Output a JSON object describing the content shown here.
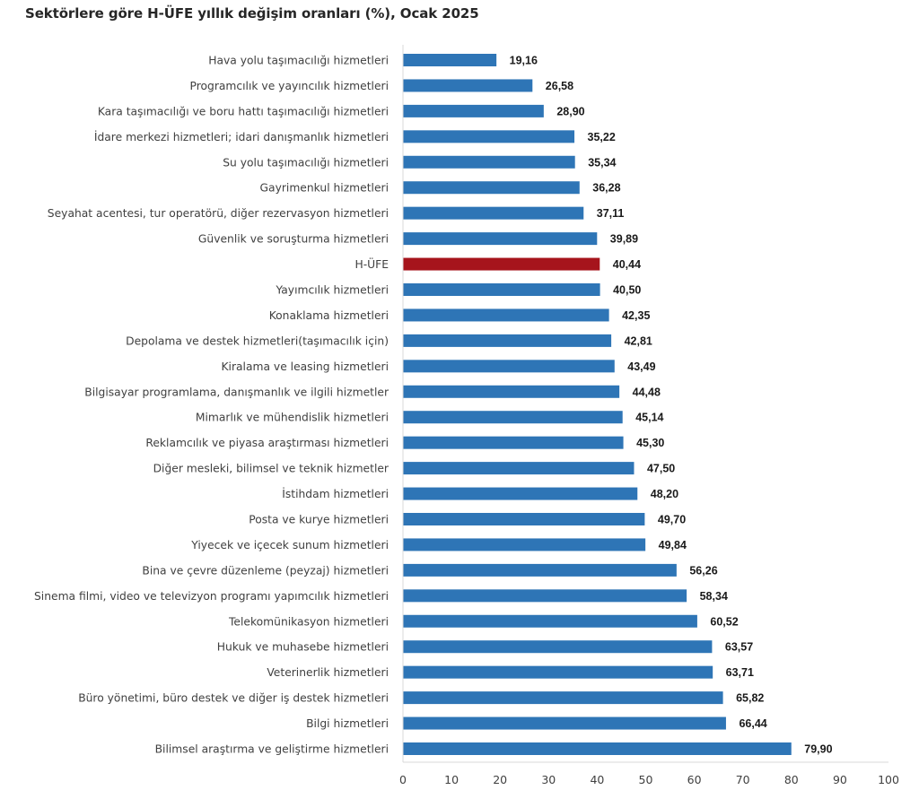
{
  "chart_data": {
    "type": "bar",
    "orientation": "horizontal",
    "title": "Sektörlere göre H-ÜFE yıllık değişim oranları (%), Ocak 2025",
    "xlabel": "",
    "ylabel": "",
    "xlim": [
      0,
      100
    ],
    "x_ticks": [
      0,
      10,
      20,
      30,
      40,
      50,
      60,
      70,
      80,
      90,
      100
    ],
    "grid": false,
    "legend": "none",
    "colors": {
      "default_bar": "#2E75B6",
      "highlight_bar": "#A6141C"
    },
    "categories": [
      "Hava yolu taşımacılığı hizmetleri",
      "Programcılık ve yayıncılık hizmetleri",
      "Kara taşımacılığı ve boru hattı taşımacılığı hizmetleri",
      "İdare merkezi hizmetleri; idari danışmanlık hizmetleri",
      "Su yolu taşımacılığı hizmetleri",
      "Gayrimenkul hizmetleri",
      "Seyahat acentesi, tur operatörü, diğer rezervasyon hizmetleri",
      "Güvenlik ve soruşturma hizmetleri",
      "H-ÜFE",
      "Yayımcılık hizmetleri",
      "Konaklama hizmetleri",
      "Depolama ve destek hizmetleri(taşımacılık için)",
      "Kiralama ve leasing hizmetleri",
      "Bilgisayar programlama, danışmanlık ve ilgili hizmetler",
      "Mimarlık ve mühendislik hizmetleri",
      "Reklamcılık ve piyasa araştırması hizmetleri",
      "Diğer mesleki, bilimsel ve teknik hizmetler",
      "İstihdam hizmetleri",
      "Posta ve kurye hizmetleri",
      "Yiyecek ve içecek sunum hizmetleri",
      "Bina ve çevre düzenleme (peyzaj) hizmetleri",
      "Sinema filmi, video ve televizyon programı yapımcılık hizmetleri",
      "Telekomünikasyon hizmetleri",
      "Hukuk ve muhasebe hizmetleri",
      "Veterinerlik hizmetleri",
      "Büro yönetimi, büro destek ve diğer iş destek hizmetleri",
      "Bilgi hizmetleri",
      "Bilimsel araştırma ve geliştirme hizmetleri"
    ],
    "values": [
      19.16,
      26.58,
      28.9,
      35.22,
      35.34,
      36.28,
      37.11,
      39.89,
      40.44,
      40.5,
      42.35,
      42.81,
      43.49,
      44.48,
      45.14,
      45.3,
      47.5,
      48.2,
      49.7,
      49.84,
      56.26,
      58.34,
      60.52,
      63.57,
      63.71,
      65.82,
      66.44,
      79.9
    ],
    "value_labels": [
      "19,16",
      "26,58",
      "28,90",
      "35,22",
      "35,34",
      "36,28",
      "37,11",
      "39,89",
      "40,44",
      "40,50",
      "42,35",
      "42,81",
      "43,49",
      "44,48",
      "45,14",
      "45,30",
      "47,50",
      "48,20",
      "49,70",
      "49,84",
      "56,26",
      "58,34",
      "60,52",
      "63,57",
      "63,71",
      "65,82",
      "66,44",
      "79,90"
    ],
    "highlight_category": "H-ÜFE"
  }
}
